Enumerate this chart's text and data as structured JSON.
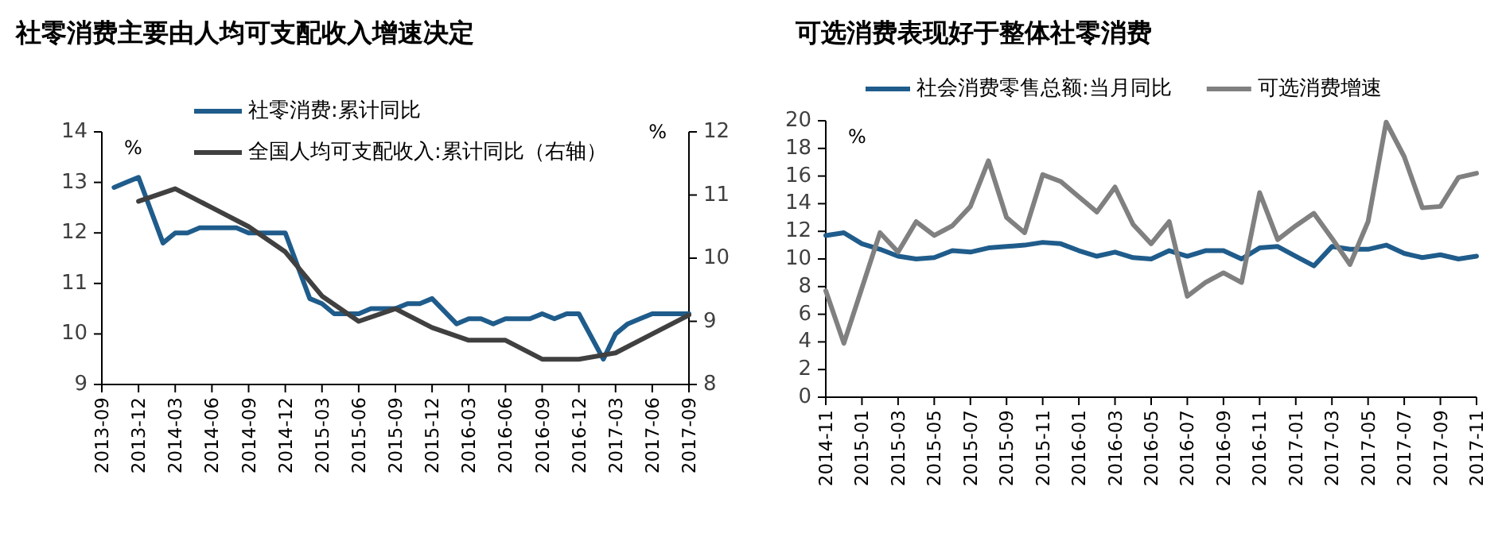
{
  "chart_data": [
    {
      "type": "line",
      "title": "社零消费主要由人均可支配收入增速决定",
      "ylabel": "%",
      "y2label": "%",
      "xlim": [
        "2013-09",
        "2017-09"
      ],
      "xticks": [
        "2013-09",
        "2013-12",
        "2014-03",
        "2014-06",
        "2014-09",
        "2014-12",
        "2015-03",
        "2015-06",
        "2015-09",
        "2015-12",
        "2016-03",
        "2016-06",
        "2016-09",
        "2016-12",
        "2017-03",
        "2017-06",
        "2017-09"
      ],
      "ylim": [
        9,
        14
      ],
      "yticks": [
        9,
        10,
        11,
        12,
        13,
        14
      ],
      "y2lim": [
        8,
        12
      ],
      "y2ticks": [
        8,
        9,
        10,
        11,
        12
      ],
      "legend": "top right",
      "grid": false,
      "marker": "none",
      "line_style": "solid",
      "series": [
        {
          "name": "社零消费:累计同比",
          "color": "#1f5c8b",
          "x": [
            "2013-10",
            "2013-11",
            "2013-12",
            "2014-02",
            "2014-03",
            "2014-04",
            "2014-05",
            "2014-06",
            "2014-07",
            "2014-08",
            "2014-09",
            "2014-10",
            "2014-11",
            "2014-12",
            "2015-02",
            "2015-03",
            "2015-04",
            "2015-05",
            "2015-06",
            "2015-07",
            "2015-08",
            "2015-09",
            "2015-10",
            "2015-11",
            "2015-12",
            "2016-02",
            "2016-03",
            "2016-04",
            "2016-05",
            "2016-06",
            "2016-07",
            "2016-08",
            "2016-09",
            "2016-10",
            "2016-11",
            "2016-12",
            "2017-02",
            "2017-03",
            "2017-04",
            "2017-05",
            "2017-06",
            "2017-07",
            "2017-08",
            "2017-09"
          ],
          "values": [
            12.9,
            13.0,
            13.1,
            11.8,
            12.0,
            12.0,
            12.1,
            12.1,
            12.1,
            12.1,
            12.0,
            12.0,
            12.0,
            12.0,
            10.7,
            10.6,
            10.4,
            10.4,
            10.4,
            10.5,
            10.5,
            10.5,
            10.6,
            10.6,
            10.7,
            10.2,
            10.3,
            10.3,
            10.2,
            10.3,
            10.3,
            10.3,
            10.4,
            10.3,
            10.4,
            10.4,
            9.5,
            10.0,
            10.2,
            10.3,
            10.4,
            10.4,
            10.4,
            10.4
          ]
        },
        {
          "name": "全国人均可支配收入:累计同比（右轴）",
          "color": "#404040",
          "axis": "y2",
          "x": [
            "2013-12",
            "2014-03",
            "2014-06",
            "2014-09",
            "2014-12",
            "2015-03",
            "2015-06",
            "2015-09",
            "2015-12",
            "2016-03",
            "2016-06",
            "2016-09",
            "2016-12",
            "2017-03",
            "2017-06",
            "2017-09"
          ],
          "values": [
            10.9,
            11.1,
            10.8,
            10.5,
            10.1,
            9.4,
            9.0,
            9.2,
            8.9,
            8.7,
            8.7,
            8.4,
            8.4,
            8.5,
            8.8,
            9.1
          ]
        }
      ]
    },
    {
      "type": "line",
      "title": "可选消费表现好于整体社零消费",
      "ylabel": "%",
      "xlim": [
        "2014-11",
        "2017-11"
      ],
      "xticks": [
        "2014-11",
        "2015-01",
        "2015-03",
        "2015-05",
        "2015-07",
        "2015-09",
        "2015-11",
        "2016-01",
        "2016-03",
        "2016-05",
        "2016-07",
        "2016-09",
        "2016-11",
        "2017-01",
        "2017-03",
        "2017-05",
        "2017-07",
        "2017-09",
        "2017-11"
      ],
      "ylim": [
        0,
        20
      ],
      "yticks": [
        0,
        2,
        4,
        6,
        8,
        10,
        12,
        14,
        16,
        18,
        20
      ],
      "legend": "top",
      "grid": false,
      "marker": "none",
      "line_style": "solid",
      "x": [
        "2014-11",
        "2014-12",
        "2015-01",
        "2015-02",
        "2015-03",
        "2015-04",
        "2015-05",
        "2015-06",
        "2015-07",
        "2015-08",
        "2015-09",
        "2015-10",
        "2015-11",
        "2015-12",
        "2016-01",
        "2016-02",
        "2016-03",
        "2016-04",
        "2016-05",
        "2016-06",
        "2016-07",
        "2016-08",
        "2016-09",
        "2016-10",
        "2016-11",
        "2016-12",
        "2017-01",
        "2017-02",
        "2017-03",
        "2017-04",
        "2017-05",
        "2017-06",
        "2017-07",
        "2017-08",
        "2017-09",
        "2017-10",
        "2017-11"
      ],
      "series": [
        {
          "name": "社会消费零售总额:当月同比",
          "color": "#1f5c8b",
          "values": [
            11.7,
            11.9,
            11.1,
            10.7,
            10.2,
            10.0,
            10.1,
            10.6,
            10.5,
            10.8,
            10.9,
            11.0,
            11.2,
            11.1,
            10.6,
            10.2,
            10.5,
            10.1,
            10.0,
            10.6,
            10.2,
            10.6,
            10.6,
            10.0,
            10.8,
            10.9,
            10.2,
            9.5,
            10.9,
            10.7,
            10.7,
            11.0,
            10.4,
            10.1,
            10.3,
            10.0,
            10.2
          ]
        },
        {
          "name": "可选消费增速",
          "color": "#808080",
          "values": [
            7.7,
            3.9,
            7.9,
            11.9,
            10.5,
            12.7,
            11.7,
            12.4,
            13.8,
            17.1,
            13.0,
            11.9,
            16.1,
            15.6,
            14.5,
            13.4,
            15.2,
            12.5,
            11.1,
            12.7,
            7.3,
            8.3,
            9.0,
            8.3,
            14.8,
            11.4,
            12.4,
            13.3,
            11.5,
            9.6,
            12.7,
            19.9,
            17.4,
            13.7,
            13.8,
            15.9,
            16.2
          ]
        }
      ]
    }
  ]
}
